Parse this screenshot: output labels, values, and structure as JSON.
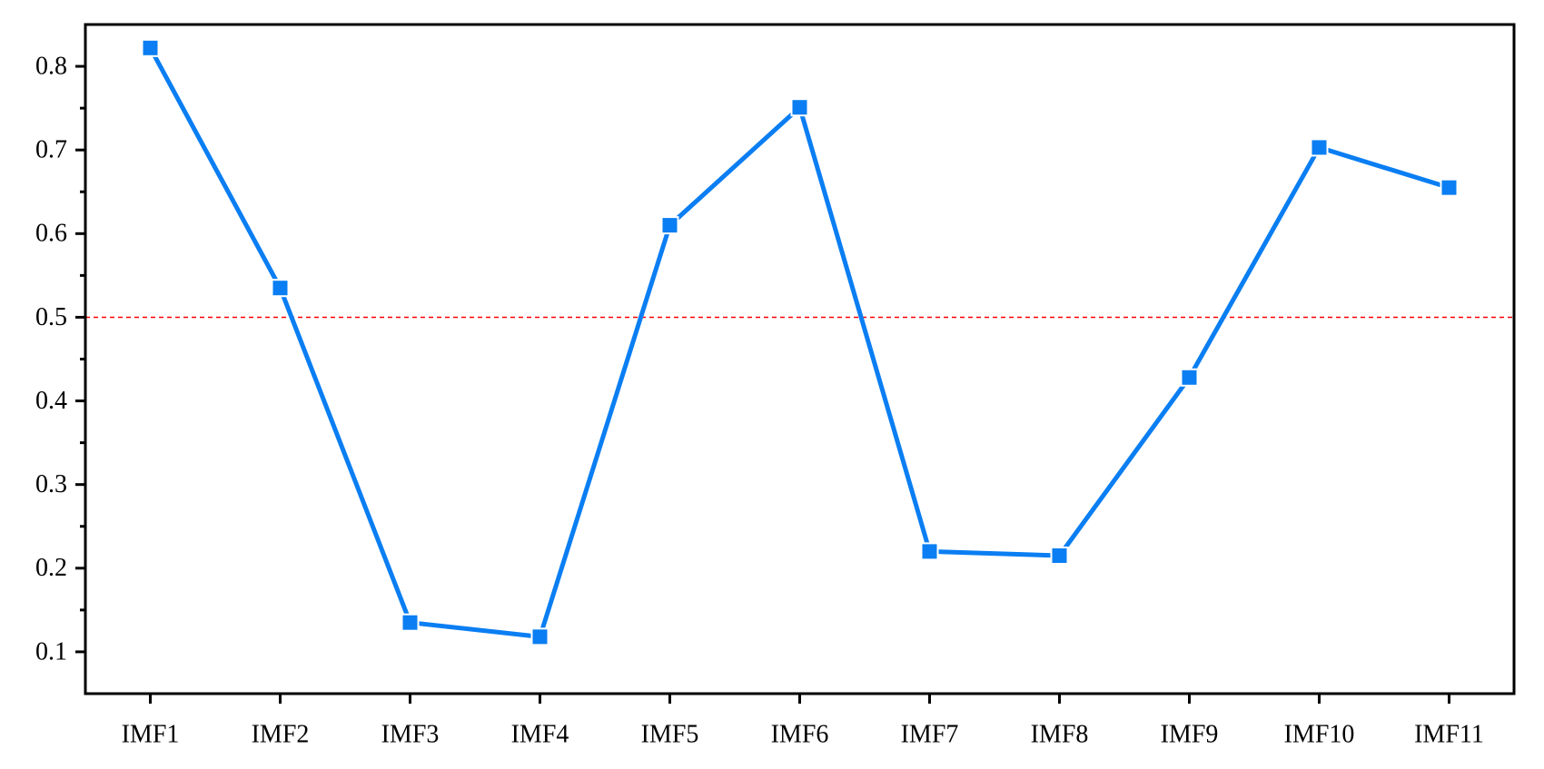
{
  "chart_data": {
    "type": "line",
    "categories": [
      "IMF1",
      "IMF2",
      "IMF3",
      "IMF4",
      "IMF5",
      "IMF6",
      "IMF7",
      "IMF8",
      "IMF9",
      "IMF10",
      "IMF11"
    ],
    "values": [
      0.822,
      0.535,
      0.135,
      0.118,
      0.61,
      0.751,
      0.22,
      0.215,
      0.428,
      0.703,
      0.655
    ],
    "color": "#0a7ef2",
    "ylim": [
      0.05,
      0.85
    ],
    "yticks": [
      0.1,
      0.2,
      0.3,
      0.4,
      0.5,
      0.6,
      0.7,
      0.8
    ],
    "reference_line": {
      "value": 0.5,
      "color": "#ff0000"
    }
  }
}
